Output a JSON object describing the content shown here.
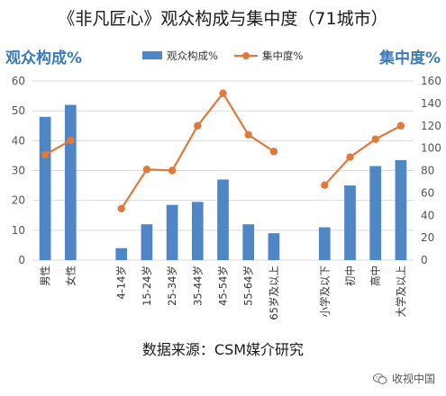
{
  "title": "《非凡匠心》观众构成与集中度（71城市）",
  "left_axis_title": "观众构成%",
  "right_axis_title": "集中度%",
  "source": "数据来源：CSM媒介研究",
  "watermark": "收视中国",
  "colors": {
    "bar": "#4f86c6",
    "line": "#e07a3a",
    "axis_title": "#3d7ab8",
    "grid": "#d9d9d9"
  },
  "chart_data": {
    "type": "bar+line",
    "title": "《非凡匠心》观众构成与集中度（71城市）",
    "categories": [
      "男性",
      "女性",
      "",
      "4-14岁",
      "15-24岁",
      "25-34岁",
      "35-44岁",
      "45-54岁",
      "55-64岁",
      "65岁及以上",
      "",
      "小学及以下",
      "初中",
      "高中",
      "大学及以上"
    ],
    "series": [
      {
        "name": "观众构成%",
        "type": "bar",
        "axis": "left",
        "values": [
          48,
          52,
          null,
          4,
          12,
          18.5,
          19.5,
          27,
          12,
          9,
          null,
          11,
          25,
          31.5,
          33.5
        ]
      },
      {
        "name": "集中度%",
        "type": "line",
        "axis": "right",
        "values": [
          94,
          107,
          null,
          46,
          81,
          80,
          120,
          149,
          112,
          97,
          null,
          67,
          92,
          108,
          120
        ]
      }
    ],
    "ylim_left": [
      0,
      60
    ],
    "yticks_left": [
      0,
      10,
      20,
      30,
      40,
      50,
      60
    ],
    "ylim_right": [
      0,
      160
    ],
    "yticks_right": [
      0,
      20,
      40,
      60,
      80,
      100,
      120,
      140,
      160
    ],
    "legend": [
      "观众构成%",
      "集中度%"
    ],
    "legend_position": "top",
    "grid": true
  }
}
